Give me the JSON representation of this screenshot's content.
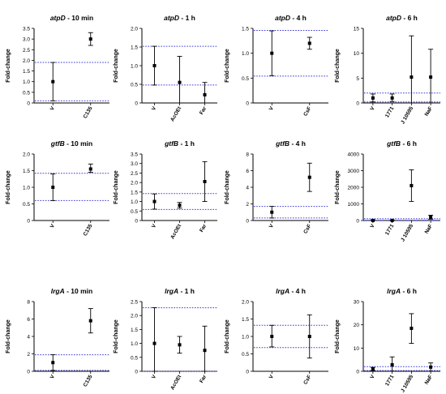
{
  "colors": {
    "axis": "#000000",
    "threshold": "#3a3ad6",
    "point": "#000000"
  },
  "chart_data": [
    {
      "type": "scatter",
      "title_gene": "atpD",
      "title_suffix": " - 10 min",
      "ylabel": "Fold-change",
      "ylim": [
        0,
        3.5
      ],
      "yticks": [
        0,
        0.5,
        1.0,
        1.5,
        2.0,
        2.5,
        3.0,
        3.5
      ],
      "ytick_labels": [
        "0",
        "0.5",
        "1.0",
        "1.5",
        "2.0",
        "2.5",
        "3.0",
        "3.5"
      ],
      "categories": [
        "V",
        "C135"
      ],
      "values": [
        1.0,
        3.0
      ],
      "err_low": [
        0.1,
        2.7
      ],
      "err_high": [
        1.9,
        3.3
      ],
      "thresholds": [
        1.9,
        0.1
      ]
    },
    {
      "type": "scatter",
      "title_gene": "atpD",
      "title_suffix": " - 1 h",
      "ylabel": "Fold-change",
      "ylim": [
        0,
        2.0
      ],
      "yticks": [
        0,
        0.5,
        1.0,
        1.5,
        2.0
      ],
      "ytick_labels": [
        "0",
        "0.5",
        "1.0",
        "1.5",
        "2.0"
      ],
      "categories": [
        "V",
        "AcOEt",
        "Far"
      ],
      "values": [
        1.0,
        0.55,
        0.22
      ],
      "err_low": [
        0.48,
        0.0,
        0.0
      ],
      "err_high": [
        1.52,
        1.25,
        0.55
      ],
      "thresholds": [
        1.52,
        0.48
      ]
    },
    {
      "type": "scatter",
      "title_gene": "atpD",
      "title_suffix": " - 4 h",
      "ylabel": "Fold-change",
      "ylim": [
        0,
        1.5
      ],
      "yticks": [
        0,
        0.5,
        1.0,
        1.5
      ],
      "ytick_labels": [
        "0",
        "0.5",
        "1.0",
        "1.5"
      ],
      "categories": [
        "V",
        "CsF"
      ],
      "values": [
        1.0,
        1.2
      ],
      "err_low": [
        0.55,
        1.08
      ],
      "err_high": [
        1.45,
        1.32
      ],
      "thresholds": [
        1.46,
        0.54
      ]
    },
    {
      "type": "scatter",
      "title_gene": "atpD",
      "title_suffix": " - 6 h",
      "ylabel": "Fold-change",
      "ylim": [
        0,
        15
      ],
      "yticks": [
        0,
        5,
        10,
        15
      ],
      "ytick_labels": [
        "0",
        "5",
        "10",
        "15"
      ],
      "categories": [
        "V",
        "1771",
        "J 10595",
        "NaF"
      ],
      "values": [
        1.0,
        1.0,
        5.2,
        5.2
      ],
      "err_low": [
        0.2,
        0.3,
        0.0,
        0.0
      ],
      "err_high": [
        1.8,
        1.8,
        13.5,
        10.8
      ],
      "thresholds": [
        2.0,
        0.2
      ]
    },
    {
      "type": "scatter",
      "title_gene": "gtfB",
      "title_suffix": " - 10 min",
      "ylabel": "Fold-change",
      "ylim": [
        0,
        2.0
      ],
      "yticks": [
        0,
        0.5,
        1.0,
        1.5,
        2.0
      ],
      "ytick_labels": [
        "0",
        "0.5",
        "1.0",
        "1.5",
        "2.0"
      ],
      "categories": [
        "V",
        "C135"
      ],
      "values": [
        1.0,
        1.55
      ],
      "err_low": [
        0.6,
        1.45
      ],
      "err_high": [
        1.4,
        1.7
      ],
      "thresholds": [
        1.42,
        0.6
      ]
    },
    {
      "type": "scatter",
      "title_gene": "gtfB",
      "title_suffix": " - 1 h",
      "ylabel": "Fold-change",
      "ylim": [
        0,
        3.5
      ],
      "yticks": [
        0,
        0.5,
        1.0,
        1.5,
        2.0,
        2.5,
        3.0,
        3.5
      ],
      "ytick_labels": [
        "0",
        "0.5",
        "1.0",
        "1.5",
        "2.0",
        "2.5",
        "3.0",
        "3.5"
      ],
      "categories": [
        "V",
        "AcOEt",
        "Far"
      ],
      "values": [
        1.0,
        0.8,
        2.05
      ],
      "err_low": [
        0.6,
        0.65,
        1.0
      ],
      "err_high": [
        1.4,
        0.95,
        3.1
      ],
      "thresholds": [
        1.42,
        0.58
      ]
    },
    {
      "type": "scatter",
      "title_gene": "gtfB",
      "title_suffix": " - 4 h",
      "ylabel": "Fold-change",
      "ylim": [
        0,
        8
      ],
      "yticks": [
        0,
        2,
        4,
        6,
        8
      ],
      "ytick_labels": [
        "0",
        "2",
        "4",
        "6",
        "8"
      ],
      "categories": [
        "V",
        "CsF"
      ],
      "values": [
        1.0,
        5.2
      ],
      "err_low": [
        0.3,
        3.5
      ],
      "err_high": [
        1.7,
        6.9
      ],
      "thresholds": [
        1.7,
        0.3
      ]
    },
    {
      "type": "scatter",
      "title_gene": "gtfB",
      "title_suffix": " - 6 h",
      "ylabel": "Fold-change",
      "ylim": [
        0,
        4000
      ],
      "yticks": [
        0,
        1000,
        2000,
        3000,
        4000
      ],
      "ytick_labels": [
        "0",
        "1000",
        "2000",
        "3000",
        "4000"
      ],
      "categories": [
        "V",
        "1771",
        "J 10595",
        "NaF"
      ],
      "values": [
        1.0,
        1.0,
        2100,
        200
      ],
      "err_low": [
        0,
        0,
        1150,
        80
      ],
      "err_high": [
        40,
        30,
        3050,
        320
      ],
      "thresholds": [
        110,
        10
      ]
    },
    {
      "type": "scatter",
      "title_gene": "lrgA",
      "title_suffix": " - 10 min",
      "ylabel": "Fold-change",
      "ylim": [
        0,
        8
      ],
      "yticks": [
        0,
        2,
        4,
        6,
        8
      ],
      "ytick_labels": [
        "0",
        "2",
        "4",
        "6",
        "8"
      ],
      "categories": [
        "V",
        "C135"
      ],
      "values": [
        1.0,
        5.8
      ],
      "err_low": [
        0.1,
        4.4
      ],
      "err_high": [
        1.9,
        7.2
      ],
      "thresholds": [
        1.9,
        0.1
      ]
    },
    {
      "type": "scatter",
      "title_gene": "lrgA",
      "title_suffix": " - 1 h",
      "ylabel": "Fold-change",
      "ylim": [
        0,
        2.5
      ],
      "yticks": [
        0,
        0.5,
        1.0,
        1.5,
        2.0,
        2.5
      ],
      "ytick_labels": [
        "0",
        "0.5",
        "1.0",
        "1.5",
        "2.0",
        "2.5"
      ],
      "categories": [
        "V",
        "AcOEt",
        "Far"
      ],
      "values": [
        1.0,
        0.95,
        0.75
      ],
      "err_low": [
        0.0,
        0.65,
        0.0
      ],
      "err_high": [
        2.28,
        1.25,
        1.62
      ],
      "thresholds": [
        2.28,
        0.0
      ]
    },
    {
      "type": "scatter",
      "title_gene": "lrgA",
      "title_suffix": " - 4 h",
      "ylabel": "Fold-change",
      "ylim": [
        0,
        2.0
      ],
      "yticks": [
        0,
        0.5,
        1.0,
        1.5,
        2.0
      ],
      "ytick_labels": [
        "0",
        "0.5",
        "1.0",
        "1.5",
        "2.0"
      ],
      "categories": [
        "V",
        "CsF"
      ],
      "values": [
        1.0,
        1.0
      ],
      "err_low": [
        0.7,
        0.38
      ],
      "err_high": [
        1.32,
        1.62
      ],
      "thresholds": [
        1.32,
        0.68
      ]
    },
    {
      "type": "scatter",
      "title_gene": "lrgA",
      "title_suffix": " - 6 h",
      "ylabel": "Fold-change",
      "ylim": [
        0,
        30
      ],
      "yticks": [
        0,
        10,
        20,
        30
      ],
      "ytick_labels": [
        "0",
        "10",
        "20",
        "30"
      ],
      "categories": [
        "V",
        "1771",
        "J 10595",
        "NaF"
      ],
      "values": [
        1.0,
        2.8,
        18.5,
        1.8
      ],
      "err_low": [
        0.3,
        0.0,
        12.0,
        0.0
      ],
      "err_high": [
        1.7,
        6.2,
        24.8,
        3.6
      ],
      "thresholds": [
        2.0,
        0.3
      ]
    }
  ]
}
